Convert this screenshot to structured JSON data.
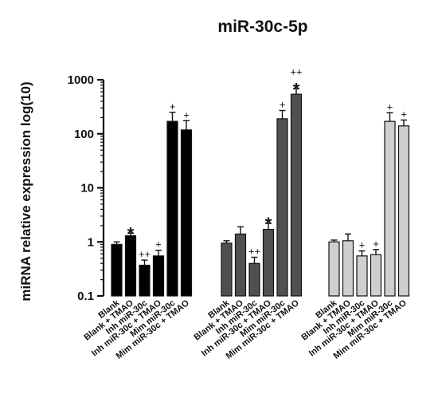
{
  "chart_data": {
    "type": "bar",
    "title": "miR-30c-5p",
    "ylabel": "miRNA relative expression log(10)",
    "xlabel": "",
    "yscale": "log",
    "ylim": [
      0.1,
      1000
    ],
    "yticks": [
      0.1,
      1,
      10,
      100,
      1000
    ],
    "ytick_labels": [
      "0.1",
      "1",
      "10",
      "100",
      "1000"
    ],
    "grid": false,
    "categories": [
      "Blank",
      "Blank + TMAO",
      "Inh miR-30c",
      "Inh miR-30c + TMAO",
      "Mim miR-30c",
      "Mim miR-30c + TMAO"
    ],
    "groups": [
      {
        "color": "#000000",
        "values": [
          0.9,
          1.3,
          0.37,
          0.55,
          170,
          118
        ],
        "errors_upper": [
          1.0,
          1.45,
          0.46,
          0.7,
          250,
          175
        ],
        "annotations": [
          "",
          "*",
          "++",
          "+",
          "+",
          "+"
        ]
      },
      {
        "color": "#505050",
        "values": [
          0.95,
          1.4,
          0.4,
          1.7,
          190,
          540
        ],
        "errors_upper": [
          1.05,
          1.9,
          0.52,
          2.2,
          270,
          680
        ],
        "annotations": [
          "",
          "",
          "++",
          "*",
          "+",
          "++ *"
        ]
      },
      {
        "color": "#cfcfcf",
        "values": [
          1.0,
          1.05,
          0.55,
          0.58,
          170,
          140
        ],
        "errors_upper": [
          1.08,
          1.4,
          0.68,
          0.72,
          245,
          180
        ],
        "annotations": [
          "",
          "",
          "+",
          "+",
          "+",
          "+"
        ]
      }
    ]
  }
}
